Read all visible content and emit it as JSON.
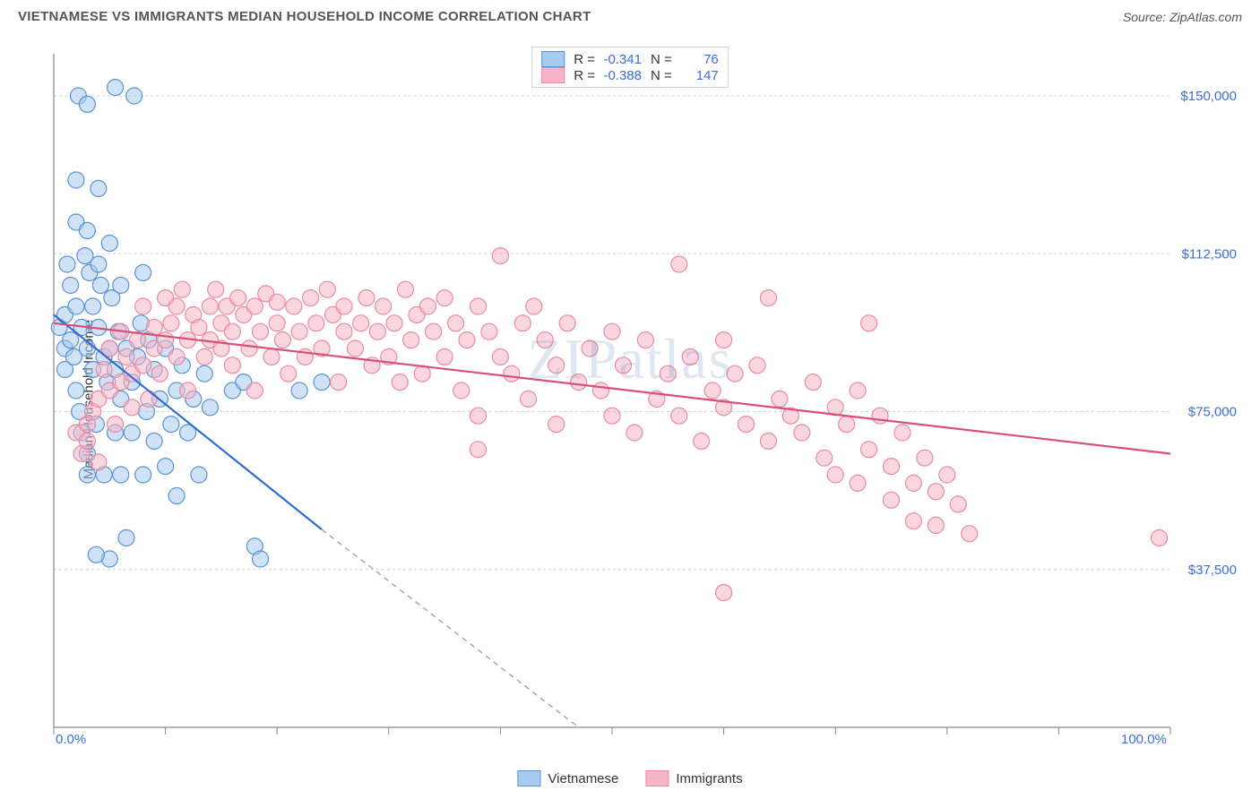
{
  "header": {
    "title": "VIETNAMESE VS IMMIGRANTS MEDIAN HOUSEHOLD INCOME CORRELATION CHART",
    "source": "Source: ZipAtlas.com"
  },
  "watermark": "ZIPatlas",
  "chart": {
    "type": "scatter",
    "background_color": "#ffffff",
    "grid_color": "#cfcfcf",
    "axis_color": "#888888",
    "yaxis_title": "Median Household Income",
    "xlim": [
      0,
      100
    ],
    "ylim": [
      0,
      160000
    ],
    "yticks": [
      {
        "v": 37500,
        "label": "$37,500"
      },
      {
        "v": 75000,
        "label": "$75,000"
      },
      {
        "v": 112500,
        "label": "$112,500"
      },
      {
        "v": 150000,
        "label": "$150,000"
      }
    ],
    "xticks_minor": [
      0,
      10,
      20,
      30,
      40,
      50,
      60,
      70,
      80,
      90,
      100
    ],
    "xtick_labels": {
      "left": "0.0%",
      "right": "100.0%"
    },
    "marker_radius": 9,
    "marker_opacity": 0.55,
    "line_width": 2.2,
    "series": [
      {
        "name": "Vietnamese",
        "fill_color": "#a8cbef",
        "stroke_color": "#5893d4",
        "line_color": "#2e6fd0",
        "R": "-0.341",
        "N": "76",
        "trend": {
          "x1": 0,
          "y1": 98000,
          "x2": 24,
          "y2": 47000,
          "ext_x2": 47,
          "ext_y2": 0
        },
        "points": [
          [
            0.5,
            95000
          ],
          [
            1,
            98000
          ],
          [
            1,
            90000
          ],
          [
            1,
            85000
          ],
          [
            1.2,
            110000
          ],
          [
            1.5,
            105000
          ],
          [
            1.5,
            92000
          ],
          [
            1.8,
            88000
          ],
          [
            2,
            130000
          ],
          [
            2,
            120000
          ],
          [
            2,
            100000
          ],
          [
            2,
            80000
          ],
          [
            2.2,
            150000
          ],
          [
            2.3,
            75000
          ],
          [
            2.5,
            95000
          ],
          [
            2.5,
            70000
          ],
          [
            2.8,
            112000
          ],
          [
            3,
            148000
          ],
          [
            3,
            118000
          ],
          [
            3,
            90000
          ],
          [
            3,
            65000
          ],
          [
            3,
            60000
          ],
          [
            3.2,
            108000
          ],
          [
            3.5,
            85000
          ],
          [
            3.5,
            100000
          ],
          [
            3.8,
            72000
          ],
          [
            4,
            95000
          ],
          [
            4,
            110000
          ],
          [
            4,
            128000
          ],
          [
            4.2,
            105000
          ],
          [
            4.5,
            60000
          ],
          [
            4.5,
            88000
          ],
          [
            4.8,
            82000
          ],
          [
            5,
            90000
          ],
          [
            5,
            40000
          ],
          [
            5,
            115000
          ],
          [
            5.2,
            102000
          ],
          [
            5.5,
            70000
          ],
          [
            5.5,
            85000
          ],
          [
            5.8,
            94000
          ],
          [
            6,
            78000
          ],
          [
            6,
            105000
          ],
          [
            6,
            60000
          ],
          [
            6.5,
            90000
          ],
          [
            6.5,
            45000
          ],
          [
            7,
            82000
          ],
          [
            7,
            70000
          ],
          [
            7.2,
            150000
          ],
          [
            7.5,
            88000
          ],
          [
            7.8,
            96000
          ],
          [
            8,
            108000
          ],
          [
            8,
            60000
          ],
          [
            8.3,
            75000
          ],
          [
            8.5,
            92000
          ],
          [
            9,
            68000
          ],
          [
            9,
            85000
          ],
          [
            9.5,
            78000
          ],
          [
            10,
            90000
          ],
          [
            10,
            62000
          ],
          [
            10.5,
            72000
          ],
          [
            11,
            55000
          ],
          [
            11,
            80000
          ],
          [
            11.5,
            86000
          ],
          [
            12,
            70000
          ],
          [
            12.5,
            78000
          ],
          [
            13,
            60000
          ],
          [
            13.5,
            84000
          ],
          [
            14,
            76000
          ],
          [
            16,
            80000
          ],
          [
            17,
            82000
          ],
          [
            18,
            43000
          ],
          [
            18.5,
            40000
          ],
          [
            22,
            80000
          ],
          [
            24,
            82000
          ],
          [
            5.5,
            152000
          ],
          [
            3.8,
            41000
          ]
        ]
      },
      {
        "name": "Immigrants",
        "fill_color": "#f5b7c6",
        "stroke_color": "#e98aa3",
        "line_color": "#d94f78",
        "R": "-0.388",
        "N": "147",
        "trend": {
          "x1": 0,
          "y1": 96000,
          "x2": 100,
          "y2": 65000
        },
        "points": [
          [
            2,
            70000
          ],
          [
            2.5,
            65000
          ],
          [
            3,
            68000
          ],
          [
            3,
            72000
          ],
          [
            3.5,
            75000
          ],
          [
            4,
            63000
          ],
          [
            4,
            78000
          ],
          [
            4.5,
            85000
          ],
          [
            5,
            80000
          ],
          [
            5,
            90000
          ],
          [
            5.5,
            72000
          ],
          [
            6,
            82000
          ],
          [
            6,
            94000
          ],
          [
            6.5,
            88000
          ],
          [
            7,
            76000
          ],
          [
            7,
            84000
          ],
          [
            7.5,
            92000
          ],
          [
            8,
            100000
          ],
          [
            8,
            86000
          ],
          [
            8.5,
            78000
          ],
          [
            9,
            90000
          ],
          [
            9,
            95000
          ],
          [
            9.5,
            84000
          ],
          [
            10,
            92000
          ],
          [
            10,
            102000
          ],
          [
            10.5,
            96000
          ],
          [
            11,
            88000
          ],
          [
            11,
            100000
          ],
          [
            11.5,
            104000
          ],
          [
            12,
            92000
          ],
          [
            12,
            80000
          ],
          [
            12.5,
            98000
          ],
          [
            13,
            95000
          ],
          [
            13.5,
            88000
          ],
          [
            14,
            100000
          ],
          [
            14,
            92000
          ],
          [
            14.5,
            104000
          ],
          [
            15,
            90000
          ],
          [
            15,
            96000
          ],
          [
            15.5,
            100000
          ],
          [
            16,
            94000
          ],
          [
            16,
            86000
          ],
          [
            16.5,
            102000
          ],
          [
            17,
            98000
          ],
          [
            17.5,
            90000
          ],
          [
            18,
            100000
          ],
          [
            18,
            80000
          ],
          [
            18.5,
            94000
          ],
          [
            19,
            103000
          ],
          [
            19.5,
            88000
          ],
          [
            20,
            96000
          ],
          [
            20,
            101000
          ],
          [
            20.5,
            92000
          ],
          [
            21,
            84000
          ],
          [
            21.5,
            100000
          ],
          [
            22,
            94000
          ],
          [
            22.5,
            88000
          ],
          [
            23,
            102000
          ],
          [
            23.5,
            96000
          ],
          [
            24,
            90000
          ],
          [
            24.5,
            104000
          ],
          [
            25,
            98000
          ],
          [
            25.5,
            82000
          ],
          [
            26,
            94000
          ],
          [
            26,
            100000
          ],
          [
            27,
            90000
          ],
          [
            27.5,
            96000
          ],
          [
            28,
            102000
          ],
          [
            28.5,
            86000
          ],
          [
            29,
            94000
          ],
          [
            29.5,
            100000
          ],
          [
            30,
            88000
          ],
          [
            30.5,
            96000
          ],
          [
            31,
            82000
          ],
          [
            31.5,
            104000
          ],
          [
            32,
            92000
          ],
          [
            32.5,
            98000
          ],
          [
            33,
            84000
          ],
          [
            33.5,
            100000
          ],
          [
            34,
            94000
          ],
          [
            35,
            88000
          ],
          [
            35,
            102000
          ],
          [
            36,
            96000
          ],
          [
            36.5,
            80000
          ],
          [
            37,
            92000
          ],
          [
            38,
            100000
          ],
          [
            38,
            74000
          ],
          [
            39,
            94000
          ],
          [
            40,
            88000
          ],
          [
            40,
            112000
          ],
          [
            41,
            84000
          ],
          [
            42,
            96000
          ],
          [
            42.5,
            78000
          ],
          [
            43,
            100000
          ],
          [
            44,
            92000
          ],
          [
            45,
            86000
          ],
          [
            45,
            72000
          ],
          [
            46,
            96000
          ],
          [
            47,
            82000
          ],
          [
            48,
            90000
          ],
          [
            49,
            80000
          ],
          [
            50,
            94000
          ],
          [
            50,
            74000
          ],
          [
            51,
            86000
          ],
          [
            52,
            70000
          ],
          [
            53,
            92000
          ],
          [
            54,
            78000
          ],
          [
            55,
            84000
          ],
          [
            56,
            74000
          ],
          [
            56,
            110000
          ],
          [
            57,
            88000
          ],
          [
            58,
            68000
          ],
          [
            59,
            80000
          ],
          [
            60,
            76000
          ],
          [
            60,
            92000
          ],
          [
            61,
            84000
          ],
          [
            62,
            72000
          ],
          [
            63,
            86000
          ],
          [
            64,
            68000
          ],
          [
            64,
            102000
          ],
          [
            65,
            78000
          ],
          [
            66,
            74000
          ],
          [
            67,
            70000
          ],
          [
            68,
            82000
          ],
          [
            69,
            64000
          ],
          [
            70,
            76000
          ],
          [
            70,
            60000
          ],
          [
            71,
            72000
          ],
          [
            72,
            58000
          ],
          [
            72,
            80000
          ],
          [
            73,
            66000
          ],
          [
            74,
            74000
          ],
          [
            75,
            62000
          ],
          [
            75,
            54000
          ],
          [
            76,
            70000
          ],
          [
            77,
            58000
          ],
          [
            77,
            49000
          ],
          [
            78,
            64000
          ],
          [
            79,
            56000
          ],
          [
            79,
            48000
          ],
          [
            80,
            60000
          ],
          [
            81,
            53000
          ],
          [
            82,
            46000
          ],
          [
            60,
            32000
          ],
          [
            99,
            45000
          ],
          [
            73,
            96000
          ],
          [
            38,
            66000
          ]
        ]
      }
    ]
  },
  "legend_bottom": [
    {
      "label": "Vietnamese",
      "fill": "#a8cbef",
      "stroke": "#5893d4"
    },
    {
      "label": "Immigrants",
      "fill": "#f5b7c6",
      "stroke": "#e98aa3"
    }
  ]
}
